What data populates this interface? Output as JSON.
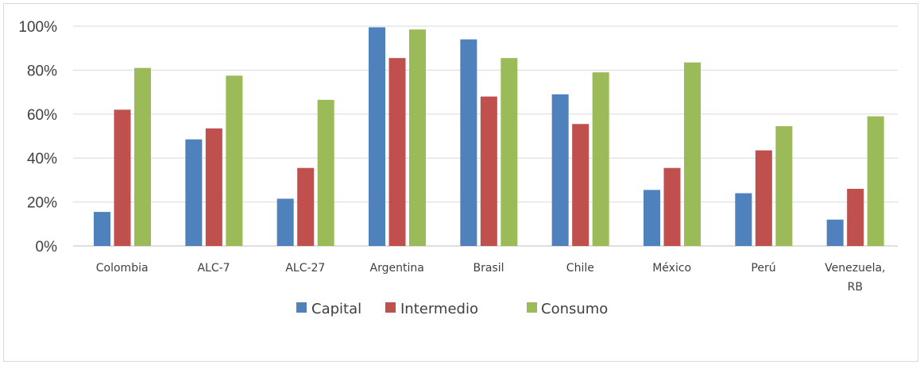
{
  "chart_data": {
    "type": "bar",
    "title": "",
    "xlabel": "",
    "ylabel": "",
    "categories": [
      "Colombia",
      "ALC-7",
      "ALC-27",
      "Argentina",
      "Brasil",
      "Chile",
      "México",
      "Perú",
      "Venezuela, RB"
    ],
    "category_lines": [
      [
        "Colombia"
      ],
      [
        "ALC-7"
      ],
      [
        "ALC-27"
      ],
      [
        "Argentina"
      ],
      [
        "Brasil"
      ],
      [
        "Chile"
      ],
      [
        "México"
      ],
      [
        "Perú"
      ],
      [
        "Venezuela,",
        "RB"
      ]
    ],
    "series": [
      {
        "name": "Capital",
        "color": "#4F81BD",
        "values": [
          15.5,
          48.5,
          21.5,
          99.5,
          94,
          69,
          25.5,
          24,
          12
        ]
      },
      {
        "name": "Intermedio",
        "color": "#C0504D",
        "values": [
          62,
          53.5,
          35.5,
          85.5,
          68,
          55.5,
          35.5,
          43.5,
          26
        ]
      },
      {
        "name": "Consumo",
        "color": "#9BBB59",
        "values": [
          81,
          77.5,
          66.5,
          98.5,
          85.5,
          79,
          83.5,
          54.5,
          59
        ]
      }
    ],
    "ylim": [
      0,
      100
    ],
    "yticks": [
      0,
      20,
      40,
      60,
      80,
      100
    ],
    "ytick_labels": [
      "0%",
      "20%",
      "40%",
      "60%",
      "80%",
      "100%"
    ],
    "grid": true,
    "legend_position": "bottom"
  }
}
